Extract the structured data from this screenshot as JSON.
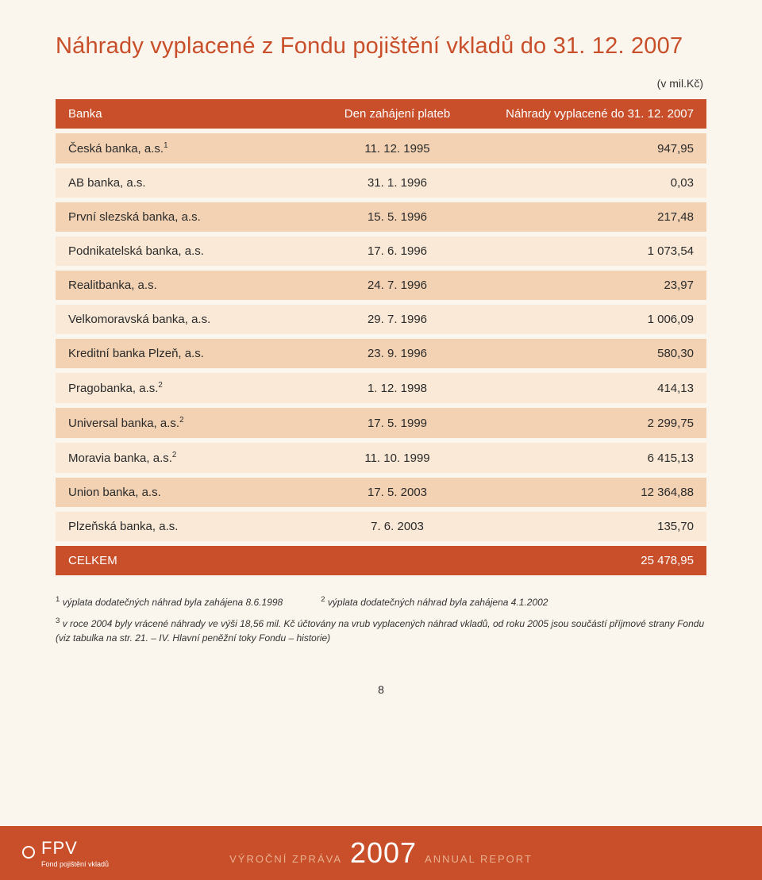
{
  "title": "Náhrady vyplacené z Fondu pojištění vkladů do 31. 12. 2007",
  "unit_note": "(v mil.Kč)",
  "columns": {
    "bank": "Banka",
    "date": "Den zahájení plateb",
    "amount": "Náhrady vyplacené do 31. 12. 2007"
  },
  "rows": [
    {
      "bank": "Česká banka, a.s.",
      "sup": "1",
      "date": "11. 12. 1995",
      "amount": "947,95",
      "shade": "dark"
    },
    {
      "bank": "AB banka, a.s.",
      "sup": "",
      "date": "31. 1. 1996",
      "amount": "0,03",
      "shade": "light"
    },
    {
      "bank": "První slezská banka, a.s.",
      "sup": "",
      "date": "15. 5. 1996",
      "amount": "217,48",
      "shade": "dark"
    },
    {
      "bank": "Podnikatelská banka, a.s.",
      "sup": "",
      "date": "17. 6. 1996",
      "amount": "1 073,54",
      "shade": "light"
    },
    {
      "bank": "Realitbanka, a.s.",
      "sup": "",
      "date": "24. 7. 1996",
      "amount": "23,97",
      "shade": "dark"
    },
    {
      "bank": "Velkomoravská banka, a.s.",
      "sup": "",
      "date": "29. 7. 1996",
      "amount": "1 006,09",
      "shade": "light"
    },
    {
      "bank": "Kreditní banka Plzeň, a.s.",
      "sup": "",
      "date": "23. 9. 1996",
      "amount": "580,30",
      "shade": "dark"
    },
    {
      "bank": "Pragobanka, a.s.",
      "sup": "2",
      "date": "1. 12. 1998",
      "amount": "414,13",
      "shade": "light"
    },
    {
      "bank": "Universal banka, a.s.",
      "sup": "2",
      "date": "17. 5. 1999",
      "amount": "2 299,75",
      "shade": "dark"
    },
    {
      "bank": "Moravia banka, a.s.",
      "sup": "2",
      "date": "11. 10. 1999",
      "amount": "6 415,13",
      "shade": "light"
    },
    {
      "bank": "Union banka, a.s.",
      "sup": "",
      "date": "17. 5. 2003",
      "amount": "12 364,88",
      "shade": "dark"
    },
    {
      "bank": "Plzeňská banka, a.s.",
      "sup": "",
      "date": "7. 6. 2003",
      "amount": "135,70",
      "shade": "light"
    }
  ],
  "total": {
    "label": "CELKEM",
    "amount": "25 478,95"
  },
  "footnotes": {
    "fn1": "výplata dodatečných náhrad byla zahájena 8.6.1998",
    "fn2": "výplata dodatečných náhrad byla zahájena 4.1.2002",
    "fn3": "v roce 2004 byly vrácené náhrady ve výši 18,56 mil. Kč účtovány na vrub vyplacených náhrad vkladů, od roku 2005 jsou součástí příjmové strany Fondu (viz tabulka na str. 21. – IV. Hlavní peněžní toky Fondu – historie)"
  },
  "page_number": "8",
  "footer": {
    "logo_text": "FPV",
    "logo_sub": "Fond pojištění vkladů",
    "vz": "VÝROČNÍ ZPRÁVA",
    "year": "2007",
    "ar": "ANNUAL REPORT"
  },
  "colors": {
    "accent": "#c84f2a",
    "row_dark": "#f2d2b3",
    "row_light": "#f9e9d6",
    "background": "#fbf6ed"
  }
}
